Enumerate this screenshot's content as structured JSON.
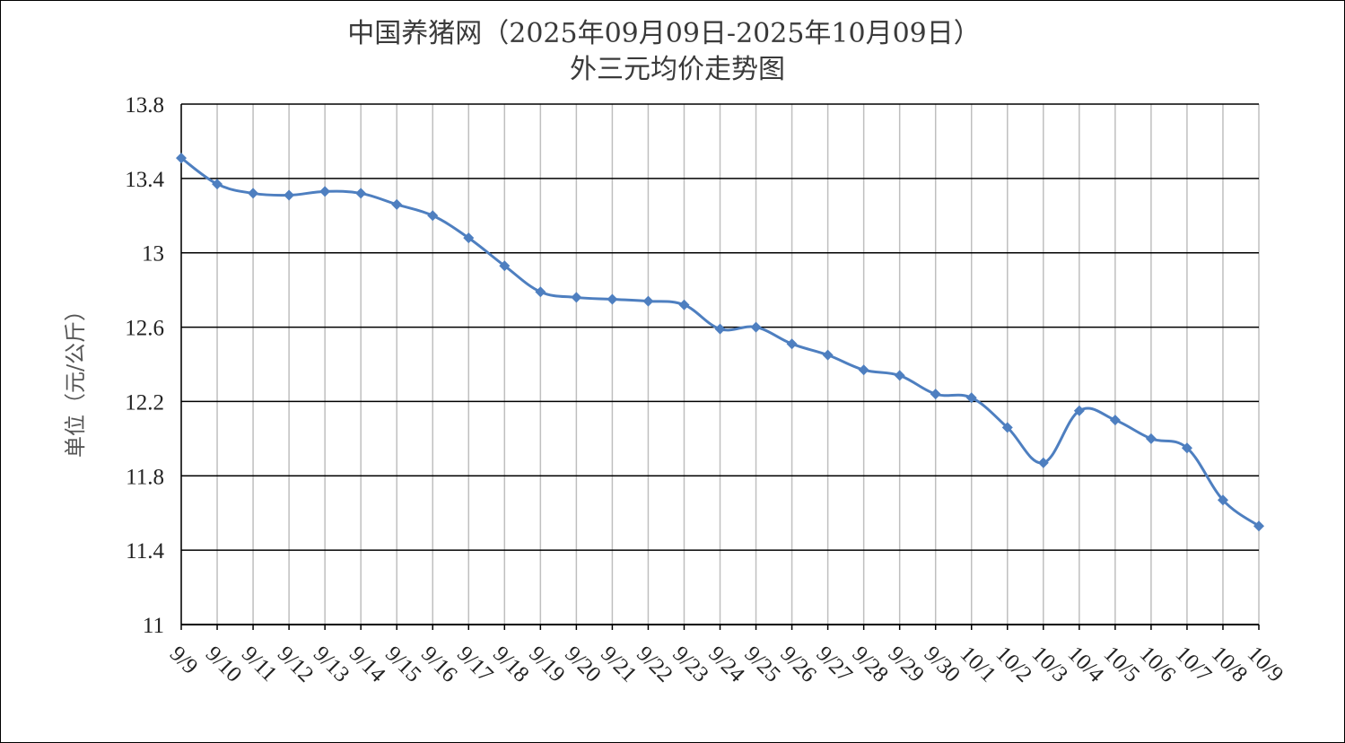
{
  "chart_data": {
    "type": "line",
    "title": "中国养猪网（2025年09月09日-2025年10月09日）",
    "subtitle": "外三元均价走势图",
    "xlabel": "",
    "ylabel": "单位（元/公斤）",
    "ylim": [
      11,
      13.8
    ],
    "yticks": [
      11,
      11.4,
      11.8,
      12.2,
      12.6,
      13,
      13.4,
      13.8
    ],
    "ytick_labels": [
      "11",
      "11.4",
      "11.8",
      "12.2",
      "12.6",
      "13",
      "13.4",
      "13.8"
    ],
    "grid": true,
    "legend": "none",
    "line_color": "#4e7fc0",
    "categories": [
      "9/9",
      "9/10",
      "9/11",
      "9/12",
      "9/13",
      "9/14",
      "9/15",
      "9/16",
      "9/17",
      "9/18",
      "9/19",
      "9/20",
      "9/21",
      "9/22",
      "9/23",
      "9/24",
      "9/25",
      "9/26",
      "9/27",
      "9/28",
      "9/29",
      "9/30",
      "10/1",
      "10/2",
      "10/3",
      "10/4",
      "10/5",
      "10/6",
      "10/7",
      "10/8",
      "10/9"
    ],
    "series": [
      {
        "values": [
          13.51,
          13.37,
          13.32,
          13.31,
          13.33,
          13.32,
          13.26,
          13.2,
          13.08,
          12.93,
          12.79,
          12.76,
          12.75,
          12.74,
          12.72,
          12.59,
          12.6,
          12.51,
          12.45,
          12.37,
          12.34,
          12.24,
          12.22,
          12.06,
          11.87,
          12.15,
          12.1,
          12.0,
          11.95,
          11.67,
          11.53
        ]
      }
    ]
  }
}
